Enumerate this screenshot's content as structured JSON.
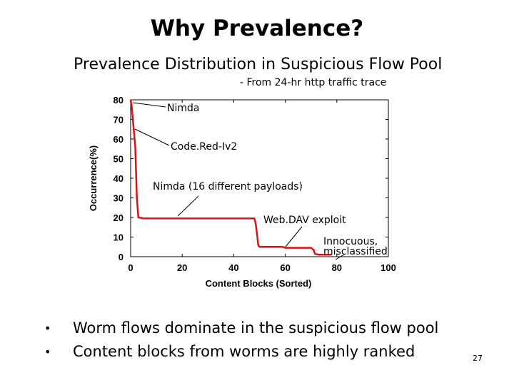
{
  "slide": {
    "title": "Why Prevalence?",
    "subtitle": "Prevalence Distribution in Suspicious Flow Pool",
    "source_note": "- From 24-hr http traffic trace",
    "bullets": [
      "Worm flows dominate in the suspicious flow pool",
      "Content blocks from worms are highly ranked"
    ],
    "bullet_glyph": "•",
    "page_number": "27"
  },
  "chart_data": {
    "type": "line",
    "title": "",
    "xlabel": "Content Blocks (Sorted)",
    "ylabel": "Occurrence(%)",
    "xlim": [
      0,
      100
    ],
    "ylim": [
      0,
      80
    ],
    "x_ticks": [
      0,
      20,
      40,
      60,
      80,
      100
    ],
    "y_ticks": [
      0,
      10,
      20,
      30,
      40,
      50,
      60,
      70,
      80
    ],
    "grid": false,
    "series": [
      {
        "color": "#dd1111",
        "x": [
          0,
          0.4,
          1,
          1.8,
          2.4,
          3,
          5,
          10,
          20,
          30,
          40,
          48,
          48.5,
          49,
          49.5,
          50,
          59,
          60,
          65,
          70,
          71,
          71.5,
          73,
          76,
          78
        ],
        "y": [
          80,
          77,
          68,
          56,
          30,
          20,
          19.5,
          19.5,
          19.5,
          19.5,
          19.5,
          19.5,
          17,
          12,
          6,
          5,
          5,
          4.5,
          4.5,
          4.5,
          3.5,
          1.5,
          1,
          1,
          1
        ]
      }
    ],
    "annotations": [
      {
        "text": "Nimda",
        "target": [
          0,
          80
        ]
      },
      {
        "text": "Code.Red-Iv2",
        "target": [
          1.5,
          65
        ]
      },
      {
        "text": "Nimda (16 different payloads)",
        "target": [
          18,
          19.5
        ]
      },
      {
        "text": "Web.DAV exploit",
        "target": [
          59,
          4.5
        ]
      },
      {
        "text": "Innocuous, misclassified",
        "lines": [
          "Innocuous,",
          "misclassified"
        ],
        "target": [
          76,
          1
        ]
      }
    ]
  }
}
